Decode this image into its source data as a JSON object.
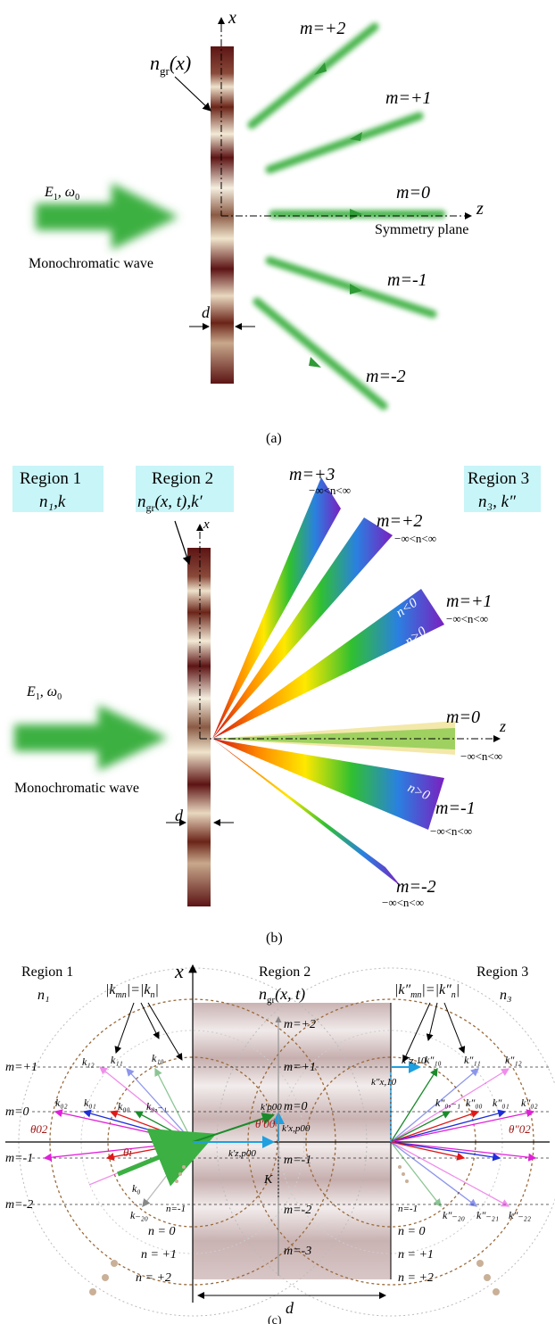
{
  "panel_a": {
    "caption": "(a)",
    "axis_x": "x",
    "axis_z": "z",
    "ngr_label": "n",
    "ngr_sub": "gr",
    "ngr_arg": "(x)",
    "e1_label": "E",
    "e1_sub": "1",
    "omega": ", ω",
    "omega_sub": "0",
    "mono": "Monochromatic wave",
    "symmetry": "Symmetry plane",
    "d_label": "d",
    "orders": [
      "m=+2",
      "m=+1",
      "m=0",
      "m=-1",
      "m=-2"
    ]
  },
  "panel_b": {
    "caption": "(b)",
    "axis_x": "x",
    "axis_z": "z",
    "region1_title": "Region 1",
    "region1_sub": "n₁,k",
    "region2_title": "Region 2",
    "region2_sub": "n",
    "region2_sub2": "gr",
    "region2_sub3": "(x, t),k′",
    "region3_title": "Region 3",
    "region3_sub": "n₃, k″",
    "e1_label": "E",
    "e1_sub": "1",
    "omega": ", ω",
    "omega_sub": "0",
    "mono": "Monochromatic wave",
    "d_label": "d",
    "orders": [
      "m=+3",
      "m=+2",
      "m=+1",
      "m=0",
      "m=-1",
      "m=-2"
    ],
    "n_range": "−∞<n<∞",
    "n_neg": "n<0",
    "n_pos": "n>0"
  },
  "panel_c": {
    "caption": "(c)",
    "axis_x": "x",
    "region1_title": "Region 1",
    "region1_n": "n₁",
    "region2_title": "Region 2",
    "region2_n": "n",
    "region2_sub": "gr",
    "region2_arg": "(x, t)",
    "region3_title": "Region 3",
    "region3_n": "n₃",
    "kmn_left": "|k",
    "kmn_left_sub": "mn",
    "kmn_left_mid": "|=|k",
    "kmn_left_sub2": "n",
    "kmn_left_end": "|",
    "kmn_right": "|k″",
    "kmn_right_sub": "mn",
    "kmn_right_mid": "|=|k″",
    "kmn_right_sub2": "n",
    "kmn_right_end": "|",
    "m_left": [
      "m=+1",
      "m=0",
      "m=-1",
      "m=-2"
    ],
    "m_center": [
      "m=+2",
      "m=+1",
      "m=0",
      "m=-1",
      "m=-2",
      "m=-3"
    ],
    "n_left": [
      "n=-1",
      "n = 0",
      "n = +1",
      "n = +2"
    ],
    "n_right": [
      "n=-1",
      "n = 0",
      "n = +1",
      "n = +2"
    ],
    "k_left": [
      "k₁₂",
      "k₁₁",
      "k₁₀",
      "k₀₂",
      "k₀₁",
      "k₀₀",
      "k₀,₋₁",
      "k₀",
      "k₋₂₀"
    ],
    "k_right": [
      "k″₁₀",
      "k″₁₁",
      "k″₁₂",
      "k″₀,₋₁",
      "k″₀₀",
      "k″₀₁",
      "k″₀₂",
      "k″₋₂₀",
      "k″₋₂₁",
      "k″₋₂₂"
    ],
    "k_right_z": "k″z,10",
    "k_right_x": "k″x,10",
    "kp_label": "k′p00",
    "kx_label": "k′x,p00",
    "kz_label": "k′z,p00",
    "theta_p": "θ′00",
    "theta02": "θ02",
    "theta_i": "θi",
    "theta02r": "θ″02",
    "K_label": "K",
    "d_label": "d"
  },
  "colors": {
    "green": "#3cb043",
    "grating_dark": "#5c1414",
    "grating_light": "#f0e6d2",
    "region_box": "#c8f5f8",
    "region2_fill": "#c9b2b2",
    "dashed_brown": "#9a6a3a"
  }
}
